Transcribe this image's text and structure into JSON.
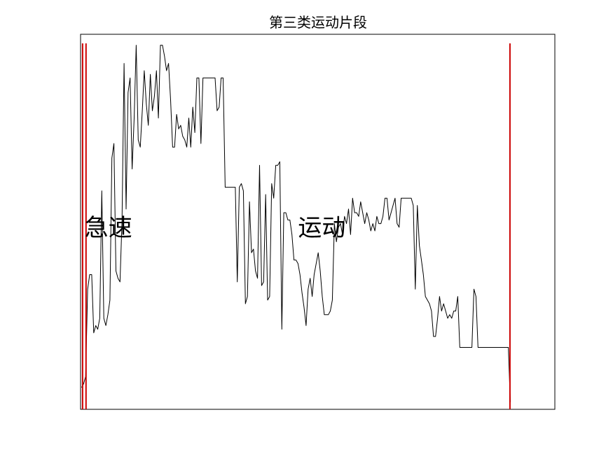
{
  "chart_data": {
    "type": "line",
    "title": "第三类运动片段",
    "xlabel": "",
    "ylabel": "",
    "grid": false,
    "axis_ticks_shown": false,
    "line_color": "#000000",
    "marker_color": "#cc0000",
    "series": [
      {
        "points": [
          [
            0,
            0.06
          ],
          [
            1,
            0.07
          ],
          [
            2,
            0.09
          ],
          [
            3,
            0.33
          ],
          [
            4,
            0.37
          ],
          [
            5,
            0.37
          ],
          [
            6,
            0.21
          ],
          [
            7,
            0.23
          ],
          [
            8,
            0.22
          ],
          [
            9,
            0.25
          ],
          [
            10,
            0.6
          ],
          [
            11,
            0.25
          ],
          [
            12,
            0.23
          ],
          [
            13,
            0.26
          ],
          [
            14,
            0.3
          ],
          [
            15,
            0.69
          ],
          [
            16,
            0.73
          ],
          [
            17,
            0.38
          ],
          [
            18,
            0.36
          ],
          [
            19,
            0.35
          ],
          [
            20,
            0.52
          ],
          [
            21,
            0.95
          ],
          [
            22,
            0.55
          ],
          [
            23,
            0.87
          ],
          [
            24,
            0.91
          ],
          [
            25,
            0.66
          ],
          [
            26,
            0.8
          ],
          [
            27,
            1.0
          ],
          [
            28,
            0.74
          ],
          [
            29,
            0.72
          ],
          [
            30,
            0.82
          ],
          [
            31,
            0.93
          ],
          [
            32,
            0.84
          ],
          [
            33,
            0.78
          ],
          [
            34,
            0.92
          ],
          [
            35,
            0.82
          ],
          [
            36,
            0.86
          ],
          [
            37,
            0.93
          ],
          [
            38,
            0.8
          ],
          [
            39,
            1.0
          ],
          [
            40,
            1.0
          ],
          [
            41,
            0.97
          ],
          [
            42,
            0.93
          ],
          [
            43,
            0.95
          ],
          [
            44,
            0.85
          ],
          [
            45,
            0.72
          ],
          [
            46,
            0.72
          ],
          [
            47,
            0.81
          ],
          [
            48,
            0.77
          ],
          [
            49,
            0.78
          ],
          [
            50,
            0.75
          ],
          [
            51,
            0.74
          ],
          [
            52,
            0.72
          ],
          [
            53,
            0.8
          ],
          [
            54,
            0.72
          ],
          [
            55,
            0.83
          ],
          [
            56,
            0.76
          ],
          [
            57,
            0.91
          ],
          [
            58,
            0.91
          ],
          [
            59,
            0.73
          ],
          [
            60,
            0.91
          ],
          [
            61,
            0.91
          ],
          [
            62,
            0.91
          ],
          [
            63,
            0.91
          ],
          [
            64,
            0.91
          ],
          [
            65,
            0.91
          ],
          [
            66,
            0.91
          ],
          [
            67,
            0.82
          ],
          [
            68,
            0.83
          ],
          [
            69,
            0.91
          ],
          [
            70,
            0.91
          ],
          [
            71,
            0.61
          ],
          [
            72,
            0.61
          ],
          [
            73,
            0.61
          ],
          [
            74,
            0.61
          ],
          [
            75,
            0.61
          ],
          [
            76,
            0.61
          ],
          [
            77,
            0.35
          ],
          [
            78,
            0.61
          ],
          [
            79,
            0.62
          ],
          [
            80,
            0.6
          ],
          [
            81,
            0.29
          ],
          [
            82,
            0.31
          ],
          [
            83,
            0.57
          ],
          [
            84,
            0.43
          ],
          [
            85,
            0.44
          ],
          [
            86,
            0.38
          ],
          [
            87,
            0.36
          ],
          [
            88,
            0.67
          ],
          [
            89,
            0.34
          ],
          [
            90,
            0.35
          ],
          [
            91,
            0.59
          ],
          [
            92,
            0.3
          ],
          [
            93,
            0.31
          ],
          [
            94,
            0.62
          ],
          [
            95,
            0.58
          ],
          [
            96,
            0.67
          ],
          [
            97,
            0.67
          ],
          [
            98,
            0.68
          ],
          [
            99,
            0.22
          ],
          [
            100,
            0.54
          ],
          [
            101,
            0.54
          ],
          [
            102,
            0.52
          ],
          [
            103,
            0.52
          ],
          [
            104,
            0.48
          ],
          [
            105,
            0.41
          ],
          [
            106,
            0.41
          ],
          [
            107,
            0.4
          ],
          [
            108,
            0.37
          ],
          [
            109,
            0.32
          ],
          [
            110,
            0.28
          ],
          [
            111,
            0.23
          ],
          [
            112,
            0.33
          ],
          [
            113,
            0.36
          ],
          [
            114,
            0.31
          ],
          [
            115,
            0.37
          ],
          [
            116,
            0.4
          ],
          [
            117,
            0.43
          ],
          [
            118,
            0.38
          ],
          [
            119,
            0.31
          ],
          [
            120,
            0.26
          ],
          [
            121,
            0.26
          ],
          [
            122,
            0.26
          ],
          [
            123,
            0.27
          ],
          [
            124,
            0.3
          ],
          [
            125,
            0.51
          ],
          [
            126,
            0.46
          ],
          [
            127,
            0.5
          ],
          [
            128,
            0.51
          ],
          [
            129,
            0.48
          ],
          [
            130,
            0.53
          ],
          [
            131,
            0.51
          ],
          [
            132,
            0.55
          ],
          [
            133,
            0.48
          ],
          [
            134,
            0.58
          ],
          [
            135,
            0.54
          ],
          [
            136,
            0.54
          ],
          [
            137,
            0.53
          ],
          [
            138,
            0.57
          ],
          [
            139,
            0.54
          ],
          [
            140,
            0.51
          ],
          [
            141,
            0.54
          ],
          [
            142,
            0.52
          ],
          [
            143,
            0.49
          ],
          [
            144,
            0.51
          ],
          [
            145,
            0.49
          ],
          [
            146,
            0.53
          ],
          [
            147,
            0.51
          ],
          [
            148,
            0.51
          ],
          [
            149,
            0.53
          ],
          [
            150,
            0.58
          ],
          [
            151,
            0.58
          ],
          [
            152,
            0.52
          ],
          [
            153,
            0.54
          ],
          [
            154,
            0.56
          ],
          [
            155,
            0.58
          ],
          [
            156,
            0.51
          ],
          [
            157,
            0.5
          ],
          [
            158,
            0.58
          ],
          [
            159,
            0.58
          ],
          [
            160,
            0.58
          ],
          [
            161,
            0.58
          ],
          [
            162,
            0.58
          ],
          [
            163,
            0.58
          ],
          [
            164,
            0.56
          ],
          [
            165,
            0.33
          ],
          [
            166,
            0.56
          ],
          [
            167,
            0.45
          ],
          [
            168,
            0.41
          ],
          [
            169,
            0.37
          ],
          [
            170,
            0.31
          ],
          [
            171,
            0.3
          ],
          [
            172,
            0.29
          ],
          [
            173,
            0.27
          ],
          [
            174,
            0.2
          ],
          [
            175,
            0.2
          ],
          [
            176,
            0.25
          ],
          [
            177,
            0.31
          ],
          [
            178,
            0.27
          ],
          [
            179,
            0.29
          ],
          [
            180,
            0.27
          ],
          [
            181,
            0.25
          ],
          [
            182,
            0.26
          ],
          [
            183,
            0.25
          ],
          [
            184,
            0.27
          ],
          [
            185,
            0.27
          ],
          [
            186,
            0.31
          ],
          [
            187,
            0.17
          ],
          [
            188,
            0.17
          ],
          [
            189,
            0.17
          ],
          [
            190,
            0.17
          ],
          [
            191,
            0.17
          ],
          [
            192,
            0.17
          ],
          [
            193,
            0.17
          ],
          [
            194,
            0.33
          ],
          [
            195,
            0.31
          ],
          [
            196,
            0.17
          ],
          [
            197,
            0.17
          ],
          [
            198,
            0.17
          ],
          [
            199,
            0.17
          ],
          [
            200,
            0.17
          ],
          [
            201,
            0.17
          ],
          [
            202,
            0.17
          ],
          [
            203,
            0.17
          ],
          [
            204,
            0.17
          ],
          [
            205,
            0.17
          ],
          [
            206,
            0.17
          ],
          [
            207,
            0.17
          ],
          [
            208,
            0.17
          ],
          [
            209,
            0.17
          ],
          [
            210,
            0.17
          ],
          [
            211,
            0.17
          ],
          [
            212,
            0.02
          ]
        ]
      }
    ],
    "xlim": [
      -0.5,
      234
    ],
    "ylim": [
      0,
      1.03
    ],
    "segment_markers": [
      0.5,
      2.2,
      211.8
    ],
    "annotations": [
      {
        "text": "急速",
        "x": 1.5,
        "y": 0.5
      },
      {
        "text": "运动",
        "x": 107,
        "y": 0.5
      }
    ]
  }
}
